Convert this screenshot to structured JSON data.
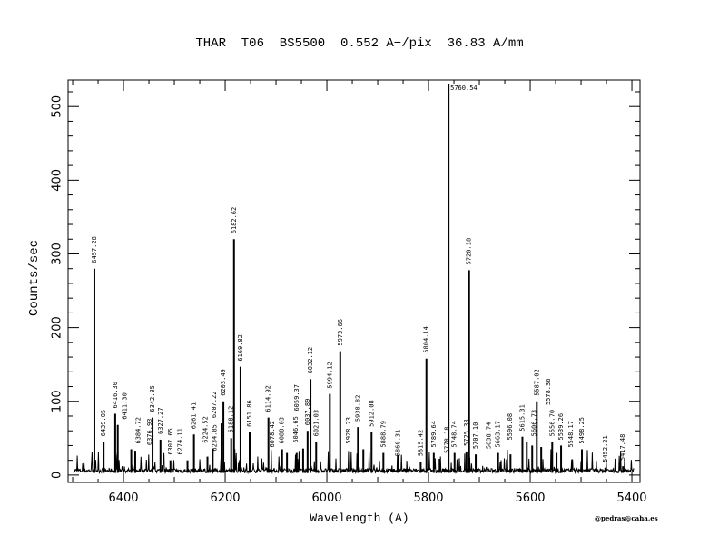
{
  "chart_data": {
    "type": "line",
    "title": "THAR  T06  BS5500  0.552 A−/pix  36.83 A/mm",
    "xlabel": "Wavelength (A)",
    "ylabel": "Counts/sec",
    "xlim": [
      6509,
      5384
    ],
    "ylim": [
      -10,
      536
    ],
    "x_reversed": true,
    "xticks": [
      6400,
      6200,
      6000,
      5800,
      5600,
      5400
    ],
    "yticks": [
      0,
      100,
      200,
      300,
      400,
      500
    ],
    "grid": false,
    "color": "#000000",
    "lines": [
      {
        "label": "6457.28",
        "x": 6457.28,
        "y": 280
      },
      {
        "label": "6439.05",
        "x": 6439.05,
        "y": 45
      },
      {
        "label": "6416.30",
        "x": 6416.3,
        "y": 83
      },
      {
        "label": "6411.30",
        "x": 6411.3,
        "y": 68
      },
      {
        "label": "6384.72",
        "x": 6384.72,
        "y": 35
      },
      {
        "label": "6376.93",
        "x": 6376.93,
        "y": 33
      },
      {
        "label": "6342.85",
        "x": 6342.85,
        "y": 78
      },
      {
        "label": "6327.27",
        "x": 6327.27,
        "y": 48
      },
      {
        "label": "6307.65",
        "x": 6307.65,
        "y": 20
      },
      {
        "label": "6274.11",
        "x": 6274.11,
        "y": 20
      },
      {
        "label": "6261.41",
        "x": 6261.41,
        "y": 55
      },
      {
        "label": "6234.85",
        "x": 6234.85,
        "y": 25
      },
      {
        "label": "6224.52",
        "x": 6224.52,
        "y": 36
      },
      {
        "label": "6207.22",
        "x": 6207.22,
        "y": 70
      },
      {
        "label": "6203.49",
        "x": 6203.49,
        "y": 100
      },
      {
        "label": "6188.12",
        "x": 6188.12,
        "y": 50
      },
      {
        "label": "6182.62",
        "x": 6182.62,
        "y": 320
      },
      {
        "label": "6169.82",
        "x": 6169.82,
        "y": 147
      },
      {
        "label": "6151.86",
        "x": 6151.86,
        "y": 58
      },
      {
        "label": "6114.92",
        "x": 6114.92,
        "y": 78
      },
      {
        "label": "6088.03",
        "x": 6088.03,
        "y": 35
      },
      {
        "label": "6078.42",
        "x": 6078.42,
        "y": 30
      },
      {
        "label": "6059.37",
        "x": 6059.37,
        "y": 30
      },
      {
        "label": "6046.65",
        "x": 6046.65,
        "y": 36
      },
      {
        "label": "6037.89",
        "x": 6037.89,
        "y": 60
      },
      {
        "label": "6032.12",
        "x": 6032.12,
        "y": 130
      },
      {
        "label": "6021.03",
        "x": 6021.03,
        "y": 45
      },
      {
        "label": "5994.12",
        "x": 5994.12,
        "y": 110
      },
      {
        "label": "5973.66",
        "x": 5973.66,
        "y": 168
      },
      {
        "label": "5938.82",
        "x": 5938.82,
        "y": 65
      },
      {
        "label": "5928.23",
        "x": 5928.23,
        "y": 35
      },
      {
        "label": "5912.08",
        "x": 5912.08,
        "y": 58
      },
      {
        "label": "5888.79",
        "x": 5888.79,
        "y": 30
      },
      {
        "label": "5860.31",
        "x": 5860.31,
        "y": 18
      },
      {
        "label": "5815.42",
        "x": 5815.42,
        "y": 18
      },
      {
        "label": "5804.14",
        "x": 5804.14,
        "y": 158
      },
      {
        "label": "5789.64",
        "x": 5789.64,
        "y": 30
      },
      {
        "label": "5778.18",
        "x": 5778.18,
        "y": 22
      },
      {
        "label": "5760.54",
        "x": 5760.54,
        "y": 530
      },
      {
        "label": "5748.74",
        "x": 5748.74,
        "y": 30
      },
      {
        "label": "5725.38",
        "x": 5725.38,
        "y": 32
      },
      {
        "label": "5720.18",
        "x": 5720.18,
        "y": 278
      },
      {
        "label": "5707.10",
        "x": 5707.1,
        "y": 28
      },
      {
        "label": "5663.17",
        "x": 5663.17,
        "y": 30
      },
      {
        "label": "5638.74",
        "x": 5638.74,
        "y": 28
      },
      {
        "label": "5615.31",
        "x": 5615.31,
        "y": 52
      },
      {
        "label": "5606.73",
        "x": 5606.73,
        "y": 45
      },
      {
        "label": "5596.08",
        "x": 5596.08,
        "y": 40
      },
      {
        "label": "5587.02",
        "x": 5587.02,
        "y": 100
      },
      {
        "label": "5578.36",
        "x": 5578.36,
        "y": 38
      },
      {
        "label": "5556.70",
        "x": 5556.7,
        "y": 45
      },
      {
        "label": "5548.17",
        "x": 5548.17,
        "y": 30
      },
      {
        "label": "5539.26",
        "x": 5539.26,
        "y": 40
      },
      {
        "label": "5498.25",
        "x": 5498.25,
        "y": 35
      },
      {
        "label": "5452.21",
        "x": 5452.21,
        "y": 10
      },
      {
        "label": "5417.48",
        "x": 5417.48,
        "y": 12
      }
    ]
  },
  "credit": "@pedras@caha.es"
}
